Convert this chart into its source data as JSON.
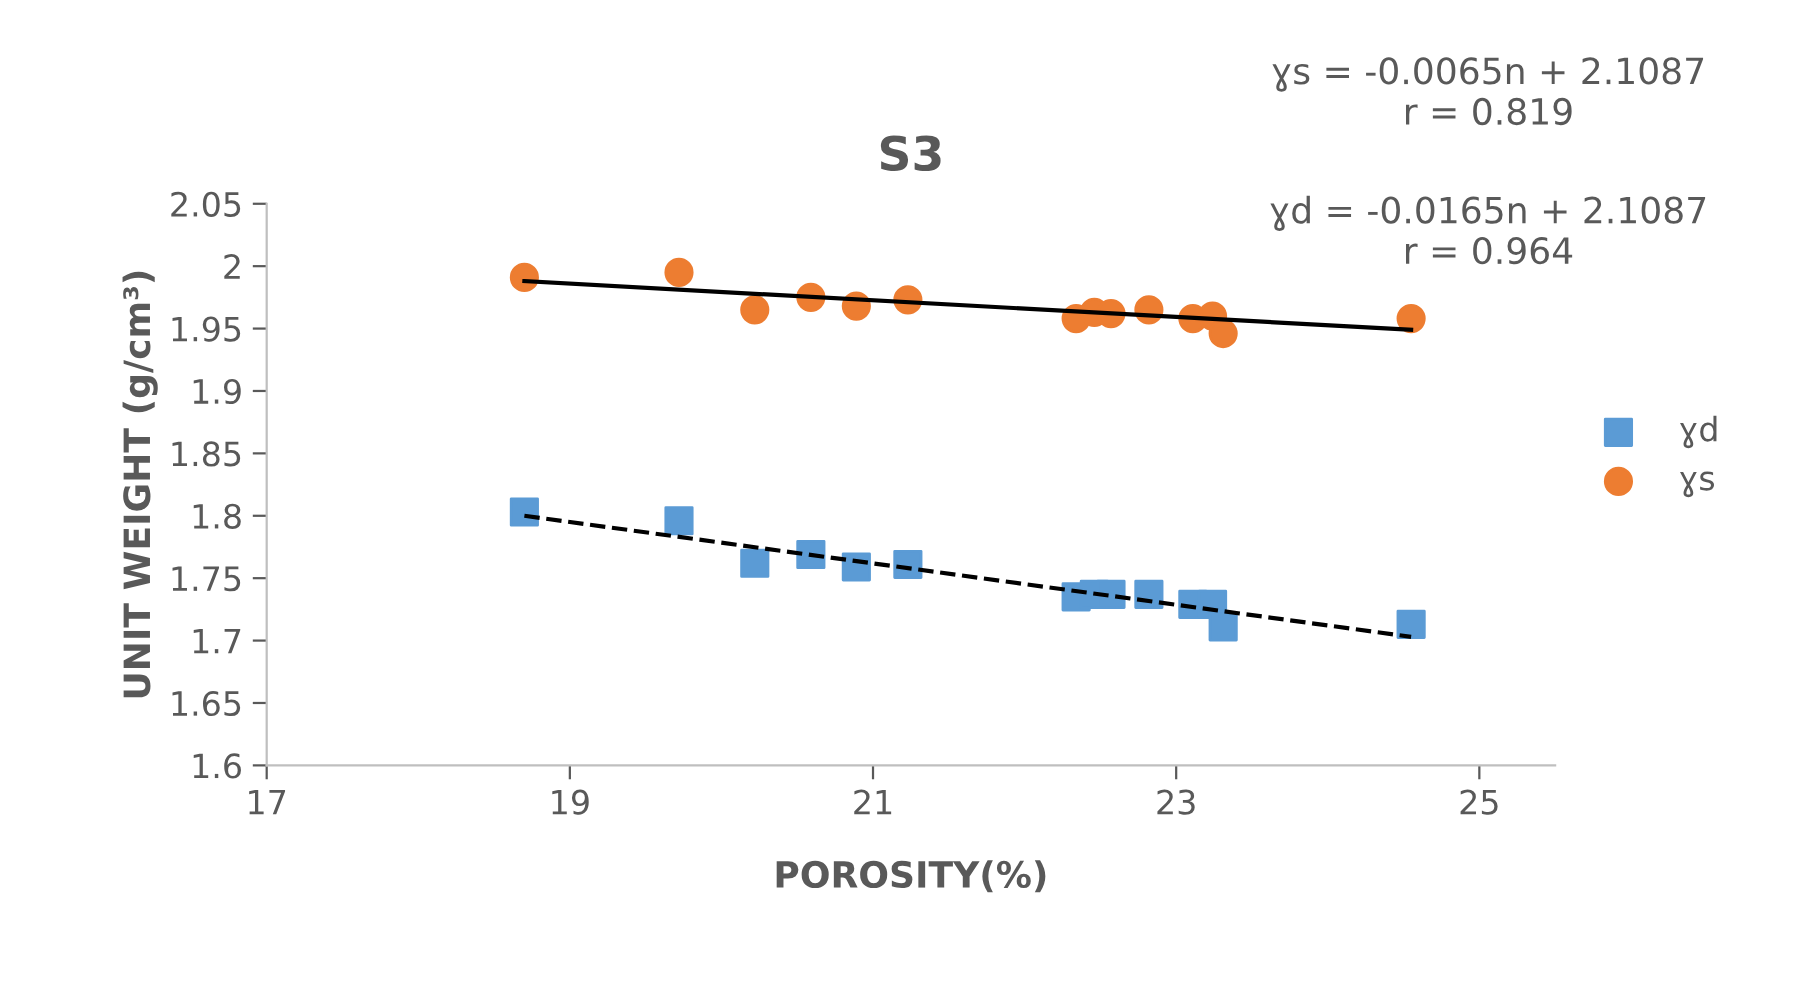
{
  "chart_data": {
    "type": "scatter",
    "title": "S3",
    "xlabel": "POROSITY(%)",
    "ylabel": "UNIT WEIGHT (g/cm³)",
    "xlim": [
      17,
      25.5
    ],
    "xticks": [
      17,
      19,
      21,
      23,
      25
    ],
    "ylim": [
      1.6,
      2.05
    ],
    "yticks": [
      1.6,
      1.65,
      1.7,
      1.75,
      1.8,
      1.85,
      1.9,
      1.95,
      2,
      2.05
    ],
    "grid": false,
    "legend": "right",
    "series": [
      {
        "name": "ɣd",
        "color": "#5b9bd5",
        "marker": "square",
        "x": [
          18.7,
          19.72,
          20.22,
          20.59,
          20.89,
          21.23,
          22.34,
          22.46,
          22.57,
          22.82,
          23.11,
          23.24,
          23.31,
          24.55
        ],
        "values": [
          1.803,
          1.796,
          1.762,
          1.769,
          1.759,
          1.761,
          1.735,
          1.737,
          1.737,
          1.737,
          1.729,
          1.729,
          1.711,
          1.713
        ]
      },
      {
        "name": "ɣs",
        "color": "#ed7d31",
        "marker": "circle",
        "x": [
          18.7,
          19.72,
          20.22,
          20.59,
          20.89,
          21.23,
          22.34,
          22.46,
          22.57,
          22.82,
          23.11,
          23.24,
          23.31,
          24.55
        ],
        "values": [
          1.991,
          1.995,
          1.965,
          1.975,
          1.968,
          1.973,
          1.958,
          1.963,
          1.962,
          1.965,
          1.958,
          1.96,
          1.946,
          1.958
        ]
      },
      {
        "type": "line",
        "color": "#000000",
        "line_style": "dashed",
        "x": [
          18.7,
          24.55
        ],
        "values": [
          1.8,
          1.703
        ]
      },
      {
        "type": "line",
        "color": "#000000",
        "line_style": "solid",
        "x": [
          18.7,
          24.55
        ],
        "values": [
          1.988,
          1.949
        ]
      }
    ],
    "annotations": [
      "ɣs = -0.0065n + 2.1087\nr = 0.819",
      "ɣd = -0.0165n + 2.1087\nr = 0.964"
    ]
  }
}
